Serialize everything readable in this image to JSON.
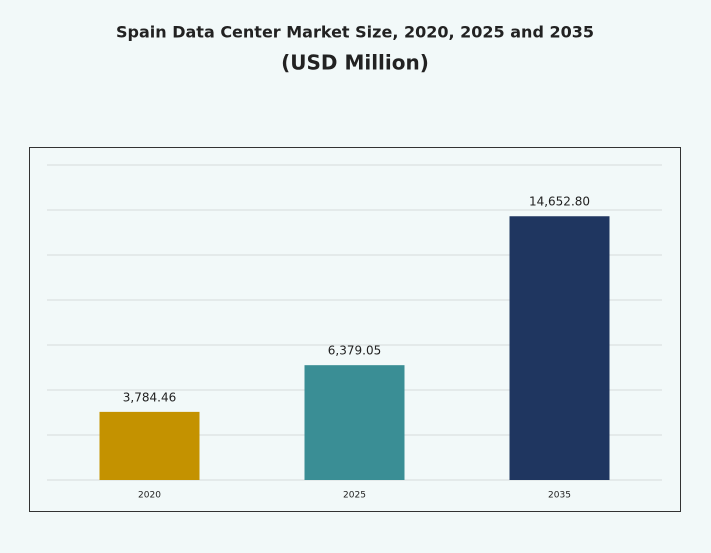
{
  "chart_data": {
    "type": "bar",
    "title": "Spain Data Center Market Size, 2020, 2025 and 2035",
    "subtitle": "(USD Million)",
    "categories": [
      "2020",
      "2025",
      "2035"
    ],
    "values": [
      3784.46,
      6379.05,
      14652.8
    ],
    "value_labels": [
      "3,784.46",
      "6,379.05",
      "14,652.80"
    ],
    "colors": [
      "#c49200",
      "#3a8e95",
      "#1f3660"
    ],
    "ylim": [
      0,
      17500
    ],
    "yticks": [
      0,
      2500,
      5000,
      7500,
      10000,
      12500,
      15000,
      17500
    ],
    "grid": true
  }
}
